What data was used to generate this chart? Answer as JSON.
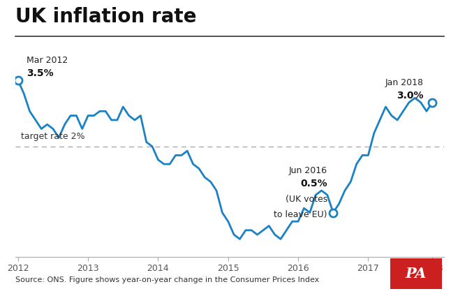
{
  "title": "UK inflation rate",
  "title_fontsize": 20,
  "line_color": "#1a82c4",
  "background_color": "#ffffff",
  "source_text": "Source: ONS. Figure shows year-on-year change in the Consumer Prices Index",
  "target_rate": 2.0,
  "target_label": "target rate 2%",
  "ylim": [
    -0.5,
    4.3
  ],
  "xlim": [
    -0.5,
    73
  ],
  "year_ticks": [
    0,
    12,
    24,
    36,
    48,
    60,
    71
  ],
  "year_labels": [
    "2012",
    "2013",
    "2014",
    "2015",
    "2016",
    "2017",
    "2018"
  ],
  "mar2012_idx": 0,
  "mar2012_val": 3.5,
  "jan2018_idx": 71,
  "jan2018_val": 3.0,
  "jun2016_idx": 54,
  "jun2016_val": 0.5,
  "data": [
    3.5,
    3.2,
    2.8,
    2.6,
    2.4,
    2.5,
    2.4,
    2.2,
    2.5,
    2.7,
    2.7,
    2.4,
    2.7,
    2.7,
    2.8,
    2.8,
    2.6,
    2.6,
    2.9,
    2.7,
    2.6,
    2.7,
    2.1,
    2.0,
    1.7,
    1.6,
    1.6,
    1.8,
    1.8,
    1.9,
    1.6,
    1.5,
    1.3,
    1.2,
    1.0,
    0.5,
    0.3,
    0.0,
    -0.1,
    0.1,
    0.1,
    0.0,
    0.1,
    0.2,
    0.0,
    -0.1,
    0.1,
    0.3,
    0.3,
    0.6,
    0.5,
    0.9,
    1.0,
    0.9,
    0.5,
    0.7,
    1.0,
    1.2,
    1.6,
    1.8,
    1.8,
    2.3,
    2.6,
    2.9,
    2.7,
    2.6,
    2.8,
    3.0,
    3.1,
    3.0,
    2.8,
    3.0
  ],
  "pa_logo_color": "#cc2020",
  "pa_text_color": "#ffffff",
  "separator_color": "#333333",
  "dashed_color": "#aaaaaa",
  "tick_color": "#aaaaaa",
  "source_color": "#333333"
}
